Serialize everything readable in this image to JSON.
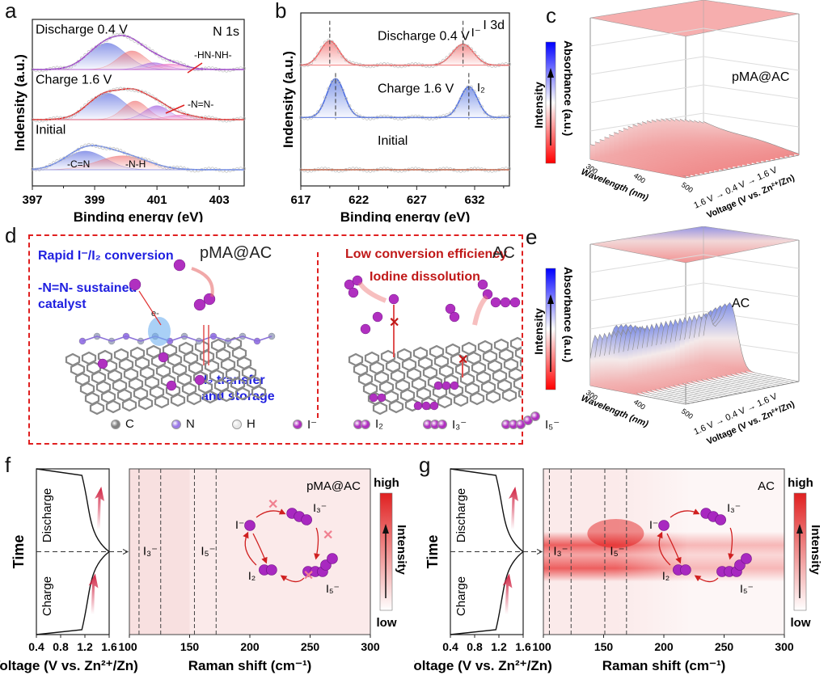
{
  "figure": {
    "panels": {
      "a": {
        "label": "a"
      },
      "b": {
        "label": "b"
      },
      "c": {
        "label": "c"
      },
      "d": {
        "label": "d"
      },
      "e": {
        "label": "e"
      },
      "f": {
        "label": "f"
      },
      "g": {
        "label": "g"
      }
    }
  },
  "chart_data": [
    {
      "id": "a",
      "type": "line",
      "title": "N 1s",
      "xlabel": "Binding energy (eV)",
      "ylabel": "Indensity (a.u.)",
      "xlim": [
        397,
        403.8
      ],
      "xticks": [
        "397",
        "399",
        "401",
        "403"
      ],
      "xtick_values": [
        397,
        399,
        401,
        403
      ],
      "series": [
        {
          "name": "Discharge 0.4 V",
          "color": "#9b30d0",
          "offset": 2,
          "peaks": [
            {
              "center": 399.4,
              "height": 0.85,
              "width": 0.6,
              "color": "#6070e0",
              "label": "-C=N"
            },
            {
              "center": 400.2,
              "height": 0.6,
              "width": 0.45,
              "color": "#f07878",
              "label": "-N-H"
            },
            {
              "center": 400.9,
              "height": 0.22,
              "width": 0.4,
              "color": "#a060e0",
              "label": "-N=N-"
            },
            {
              "center": 401.4,
              "height": 0.18,
              "width": 0.5,
              "color": "#f070c0",
              "label": "-HN-NH-"
            }
          ]
        },
        {
          "name": "Charge 1.6 V",
          "color": "#e82020",
          "offset": 1,
          "peaks": [
            {
              "center": 399.4,
              "height": 0.85,
              "width": 0.6,
              "color": "#6070e0",
              "label": "-C=N"
            },
            {
              "center": 400.3,
              "height": 0.6,
              "width": 0.4,
              "color": "#f07878",
              "label": "-N-H"
            },
            {
              "center": 401.0,
              "height": 0.45,
              "width": 0.4,
              "color": "#a060e0",
              "label": "-N=N-"
            },
            {
              "center": 401.8,
              "height": 0.15,
              "width": 0.5,
              "color": "#f070c0",
              "label": "-HN-NH-"
            }
          ]
        },
        {
          "name": "Initial",
          "color": "#6080f0",
          "offset": 0,
          "peaks": [
            {
              "center": 398.7,
              "height": 0.6,
              "width": 0.65,
              "color": "#6070e0",
              "label": "-C=N"
            },
            {
              "center": 399.9,
              "height": 0.45,
              "width": 0.8,
              "color": "#f07878",
              "label": "-N-H"
            }
          ]
        }
      ],
      "annotations": [
        "-HN-NH-",
        "-N=N-",
        "-C=N",
        "-N-H"
      ]
    },
    {
      "id": "b",
      "type": "line",
      "title": "I 3d",
      "xlabel": "Binding energy (eV)",
      "ylabel": "Indensity (a.u.)",
      "xlim": [
        617,
        635
      ],
      "xticks": [
        "617",
        "622",
        "627",
        "632"
      ],
      "xtick_values": [
        617,
        622,
        627,
        632
      ],
      "series": [
        {
          "name": "Discharge 0.4 V",
          "color": "#f06060",
          "offset": 2,
          "peaks": [
            {
              "center": 619.5,
              "height": 0.75,
              "width": 0.8
            },
            {
              "center": 631.0,
              "height": 0.65,
              "width": 0.9
            }
          ],
          "marker_label": "I⁻",
          "dashed_lines": [
            619.5,
            631.0
          ]
        },
        {
          "name": "Charge 1.6 V",
          "color": "#5070e0",
          "offset": 1,
          "peaks": [
            {
              "center": 620.0,
              "height": 1.2,
              "width": 0.75
            },
            {
              "center": 631.5,
              "height": 0.95,
              "width": 0.75
            }
          ],
          "marker_label": "I₂",
          "dashed_lines": [
            620.0,
            631.5
          ]
        },
        {
          "name": "Initial",
          "color": "#c05030",
          "offset": 0,
          "peaks": []
        }
      ]
    },
    {
      "id": "c",
      "type": "area",
      "title": "pMA@AC",
      "xlabel": "Wavelength (nm)",
      "ylabel": "Voltage (V vs. Zn²⁺/Zn)",
      "zlabel": "Absorbance (a.u.)",
      "x_ticks": [
        "300",
        "400",
        "500"
      ],
      "voltage_path": [
        "1.6 V",
        "0.4 V",
        "1.6 V"
      ],
      "colorbar": {
        "label": "Intensity",
        "low_color": "#ff0000",
        "mid_color": "#ffffff",
        "high_color": "#0000ff"
      },
      "relative_max_absorbance": 0.25
    },
    {
      "id": "e",
      "type": "area",
      "title": "AC",
      "xlabel": "Wavelength (nm)",
      "ylabel": "Voltage (V vs. Zn²⁺/Zn)",
      "zlabel": "Absorbance (a.u.)",
      "x_ticks": [
        "300",
        "400",
        "500"
      ],
      "voltage_path": [
        "1.6 V",
        "0.4 V",
        "1.6 V"
      ],
      "colorbar": {
        "label": "Intensity",
        "low_color": "#ff0000",
        "mid_color": "#ffffff",
        "high_color": "#0000ff"
      },
      "relative_max_absorbance": 0.65
    },
    {
      "id": "f",
      "type": "heatmap",
      "title": "pMA@AC",
      "voltage_profile": {
        "xlabel": "Voltage (V vs. Zn²⁺/Zn)",
        "ylabel": "Time",
        "xlim": [
          0.4,
          1.6
        ],
        "xticks": [
          "0.4",
          "0.8",
          "1.2",
          "1.6"
        ],
        "segments": [
          "Charge",
          "Discharge"
        ]
      },
      "xlabel": "Raman shift (cm⁻¹)",
      "xlim": [
        100,
        300
      ],
      "xticks": [
        "100",
        "150",
        "200",
        "250",
        "300"
      ],
      "dashed_lines": [
        108,
        126,
        154,
        172
      ],
      "band_labels": [
        {
          "text": "I₃⁻",
          "x": 114
        },
        {
          "text": "I₅⁻",
          "x": 162
        }
      ],
      "colorbar": {
        "label": "Intensity",
        "high": "high",
        "low": "low"
      },
      "peak_intensity": 0.08,
      "cycle": {
        "species": [
          "I⁻",
          "I₃⁻",
          "I₅⁻",
          "I₂"
        ],
        "blocked": true
      }
    },
    {
      "id": "g",
      "type": "heatmap",
      "title": "AC",
      "voltage_profile": {
        "xlabel": "Voltage (V vs. Zn²⁺/Zn)",
        "ylabel": "Time",
        "xlim": [
          0.4,
          1.6
        ],
        "xticks": [
          "0.4",
          "0.8",
          "1.2",
          "1.6"
        ],
        "segments": [
          "Charge",
          "Discharge"
        ]
      },
      "xlabel": "Raman shift (cm⁻¹)",
      "xlim": [
        100,
        300
      ],
      "xticks": [
        "100",
        "150",
        "200",
        "250",
        "300"
      ],
      "dashed_lines": [
        105,
        123,
        151,
        169
      ],
      "band_labels": [
        {
          "text": "I₃⁻",
          "x": 111
        },
        {
          "text": "I₅⁻",
          "x": 158
        }
      ],
      "colorbar": {
        "label": "Intensity",
        "high": "high",
        "low": "low"
      },
      "peak_intensity": 0.9,
      "cycle": {
        "species": [
          "I⁻",
          "I₃⁻",
          "I₅⁻",
          "I₂"
        ],
        "blocked": false
      }
    }
  ],
  "diagram_d": {
    "left": {
      "title": "Rapid I⁻/I₂ conversion",
      "material": "pMA@AC",
      "note1": "-N=N- sustained",
      "note2": "catalyst",
      "electron": "e-",
      "note3": "I₂ transfer",
      "note4": "and storage"
    },
    "right": {
      "title": "Low conversion efficiency",
      "material": "AC",
      "note1": "Iodine dissolution"
    },
    "legend": [
      {
        "symbol": "C",
        "color": "#808080",
        "count": 1
      },
      {
        "symbol": "N",
        "color": "#9b7ae8",
        "count": 1
      },
      {
        "symbol": "H",
        "color": "#e8e8e8",
        "count": 1
      },
      {
        "symbol": "I⁻",
        "color": "#b030c0",
        "count": 1
      },
      {
        "symbol": "I₂",
        "color": "#b030c0",
        "count": 2
      },
      {
        "symbol": "I₃⁻",
        "color": "#b030c0",
        "count": 3
      },
      {
        "symbol": "I₅⁻",
        "color": "#b030c0",
        "count": 5
      }
    ]
  },
  "colors": {
    "red": "#e02020",
    "blue": "#2020e0",
    "dark_red": "#c01818",
    "iodine": "#b030c0"
  }
}
